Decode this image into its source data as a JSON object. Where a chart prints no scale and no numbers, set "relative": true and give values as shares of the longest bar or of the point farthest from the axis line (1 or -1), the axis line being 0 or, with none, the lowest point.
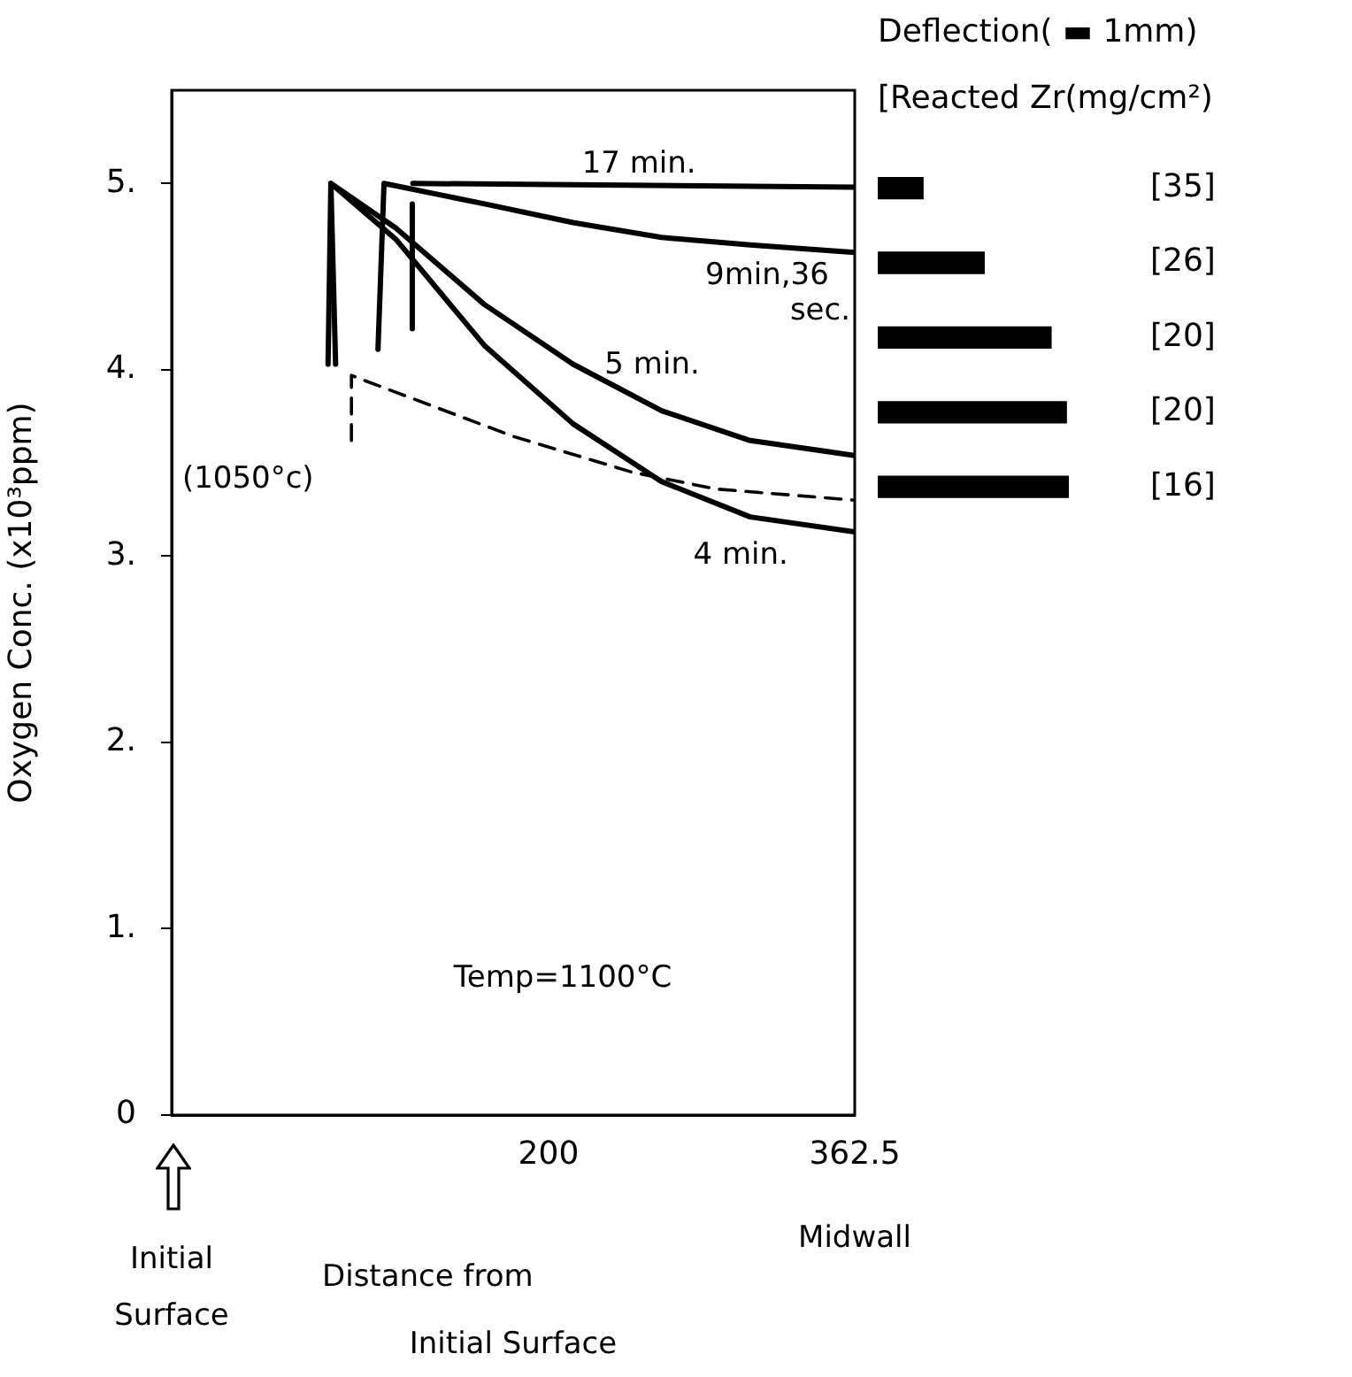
{
  "chart_data": [
    {
      "type": "line",
      "ylabel": "Oxygen Conc. (x10³ppm)",
      "xlabel": "Distance from Initial Surface",
      "annotations": [
        "Temp=1100°C",
        "Initial Surface",
        "Midwall"
      ],
      "xlim": [
        0,
        362.5
      ],
      "xticks": [
        200,
        362.5
      ],
      "ylim": [
        0,
        5.5
      ],
      "yticks": [
        0,
        {
          "value": 1,
          "label": "1."
        },
        {
          "value": 2,
          "label": "2."
        },
        {
          "value": 3,
          "label": "3."
        },
        {
          "value": 4,
          "label": "4."
        },
        {
          "value": 5,
          "label": "5."
        }
      ],
      "series": [
        {
          "name": "4 min.",
          "color": "#000000",
          "x": [
            83,
            84.5,
            119,
            166,
            213,
            260,
            307,
            362.5
          ],
          "values": [
            4.03,
            5.0,
            4.7,
            4.13,
            3.71,
            3.4,
            3.21,
            3.13
          ]
        },
        {
          "name": "5 min.",
          "color": "#000000",
          "x": [
            87,
            84.5,
            119,
            166,
            213,
            260,
            307,
            362.5
          ],
          "values": [
            4.03,
            5.0,
            4.76,
            4.35,
            4.03,
            3.78,
            3.62,
            3.54
          ]
        },
        {
          "name": "9min,36 sec.",
          "color": "#000000",
          "x": [
            109.5,
            112.7,
            166,
            213,
            260,
            307,
            362.5
          ],
          "values": [
            4.11,
            5.0,
            4.89,
            4.79,
            4.71,
            4.67,
            4.63
          ]
        },
        {
          "name": "17 min.",
          "color": "#000000",
          "x": [
            127.7,
            127.7,
            127.9,
            128,
            362.5
          ],
          "values": [
            4.22,
            4.89,
            null,
            5.0,
            4.98
          ]
        },
        {
          "name": "(1050°c)",
          "color": "#000000",
          "line_style": "dashed",
          "x": [
            95.4,
            95.4,
            103,
            182,
            244.5,
            289,
            362.5
          ],
          "values": [
            3.62,
            3.97,
            3.94,
            3.64,
            3.45,
            3.36,
            3.3
          ]
        }
      ]
    },
    {
      "type": "bar",
      "orientation": "horizontal",
      "relative": true,
      "title": "Deflection( ▬ 1mm)",
      "subtitle": "[Reacted Zr(mg/cm²)",
      "categories": [
        "[35]",
        "[26]",
        "[20]",
        "[20]",
        "[16]"
      ],
      "values": [
        0.24,
        0.56,
        0.91,
        0.99,
        1.0
      ],
      "color": "#000000"
    }
  ]
}
